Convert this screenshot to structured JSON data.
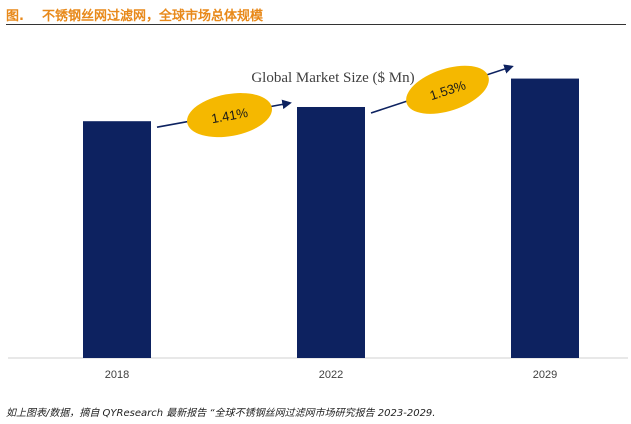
{
  "header": {
    "figure_label": "图.",
    "title": "不锈钢丝网过滤网，全球市场总体规模"
  },
  "chart_data": {
    "type": "bar",
    "title": "Global Market Size ($ Mn)",
    "categories": [
      "2018",
      "2022",
      "2029"
    ],
    "values": [
      1.0,
      1.06,
      1.18
    ],
    "ylim": [
      0,
      1.25
    ],
    "grid": false,
    "legend": "none",
    "bar_color": "#0d2260",
    "annotations": [
      {
        "label": "1.41%",
        "from": "2018",
        "to": "2022"
      },
      {
        "label": "1.53%",
        "from": "2022",
        "to": "2029"
      }
    ],
    "annotation_color": "#f5b800",
    "arrow_color": "#0d2260"
  },
  "footer": {
    "source": "如上图表/数据，摘自 QYResearch 最新报告 “全球不锈钢丝网过滤网市场研究报告 2023-2029."
  }
}
